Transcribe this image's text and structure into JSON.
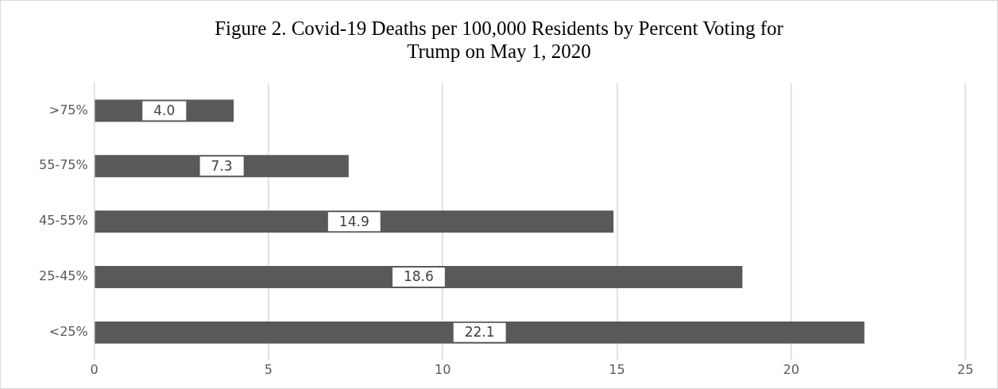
{
  "chart_data": {
    "type": "bar",
    "orientation": "horizontal",
    "title": "Figure 2. Covid-19 Deaths per 100,000 Residents by Percent Voting for Trump on May 1, 2020",
    "categories": [
      ">75%",
      "55-75%",
      "45-55%",
      "25-45%",
      "<25%"
    ],
    "values": [
      4.0,
      7.3,
      14.9,
      18.6,
      22.1
    ],
    "value_labels": [
      "4.0",
      "7.3",
      "14.9",
      "18.6",
      "22.1"
    ],
    "color": "#595959",
    "xlim": [
      0,
      25
    ],
    "xticks": [
      0,
      5,
      10,
      15,
      20,
      25
    ],
    "grid": "x",
    "legend": false
  }
}
